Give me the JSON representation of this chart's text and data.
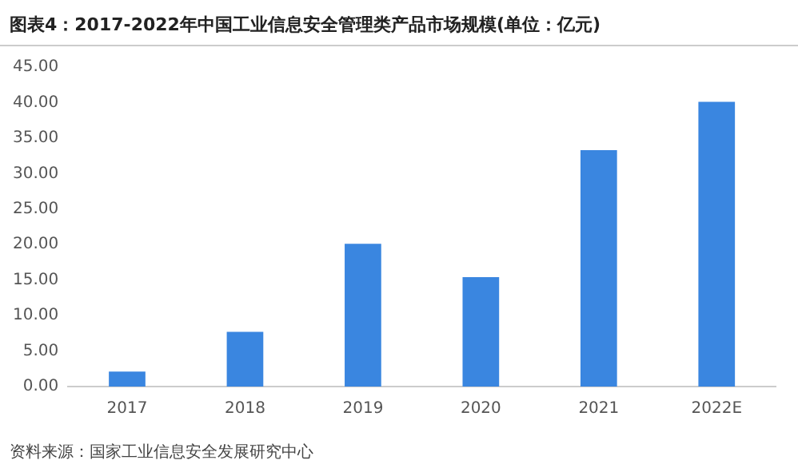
{
  "chart_data": {
    "type": "bar",
    "title": "图表4：2017-2022年中国工业信息安全管理类产品市场规模(单位：亿元)",
    "categories": [
      "2017",
      "2018",
      "2019",
      "2020",
      "2021",
      "2022E"
    ],
    "values": [
      2.1,
      7.7,
      20.1,
      15.4,
      33.3,
      40.1
    ],
    "color": "#3a86e0",
    "ylim": [
      0,
      45
    ],
    "yticks": [
      {
        "value": 0,
        "label": "0.00"
      },
      {
        "value": 5,
        "label": "5.00"
      },
      {
        "value": 10,
        "label": "10.00"
      },
      {
        "value": 15,
        "label": "15.00"
      },
      {
        "value": 20,
        "label": "20.00"
      },
      {
        "value": 25,
        "label": "25.00"
      },
      {
        "value": 30,
        "label": "30.00"
      },
      {
        "value": 35,
        "label": "35.00"
      },
      {
        "value": 40,
        "label": "40.00"
      },
      {
        "value": 45,
        "label": "45.00"
      }
    ],
    "grid": false,
    "legend": false,
    "annotations": [
      "资料来源：国家工业信息安全发展研究中心"
    ]
  }
}
